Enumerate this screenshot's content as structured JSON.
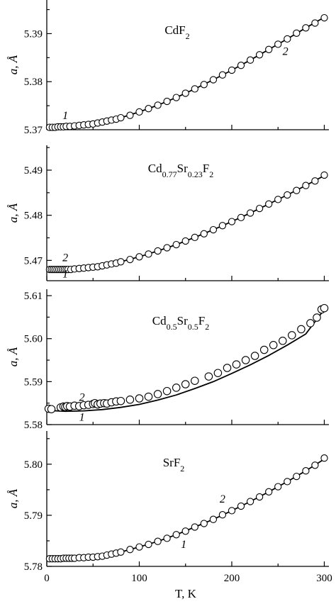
{
  "chart_data": [
    {
      "type": "line",
      "title": "CdF₂",
      "title_parts": [
        "CdF",
        "2",
        ""
      ],
      "ylabel": "a, Å",
      "xlim": [
        0,
        305
      ],
      "ylim": [
        5.37,
        5.397
      ],
      "y_ticks": [
        5.37,
        5.38,
        5.39
      ],
      "y_tick_labels": [
        "5.37",
        "5.38",
        "5.39"
      ],
      "series": [
        {
          "points": [
            [
              3,
              5.3705
            ],
            [
              6,
              5.3705
            ],
            [
              9,
              5.3705
            ],
            [
              12,
              5.3706
            ],
            [
              15,
              5.3706
            ],
            [
              18,
              5.3706
            ],
            [
              21,
              5.3707
            ],
            [
              25,
              5.3707
            ],
            [
              30,
              5.3708
            ],
            [
              35,
              5.3709
            ],
            [
              40,
              5.371
            ],
            [
              45,
              5.3711
            ],
            [
              50,
              5.3712
            ],
            [
              55,
              5.3714
            ],
            [
              60,
              5.3716
            ],
            [
              65,
              5.3718
            ],
            [
              70,
              5.372
            ],
            [
              75,
              5.3722
            ],
            [
              80,
              5.3725
            ],
            [
              90,
              5.373
            ],
            [
              100,
              5.3737
            ],
            [
              110,
              5.3744
            ],
            [
              120,
              5.3751
            ],
            [
              130,
              5.3759
            ],
            [
              140,
              5.3767
            ],
            [
              150,
              5.3776
            ],
            [
              160,
              5.3785
            ],
            [
              170,
              5.3794
            ],
            [
              180,
              5.3804
            ],
            [
              190,
              5.3814
            ],
            [
              200,
              5.3824
            ],
            [
              210,
              5.3834
            ],
            [
              220,
              5.3845
            ],
            [
              230,
              5.3856
            ],
            [
              240,
              5.3867
            ],
            [
              250,
              5.3878
            ],
            [
              260,
              5.3889
            ],
            [
              270,
              5.3901
            ],
            [
              280,
              5.3912
            ],
            [
              290,
              5.3922
            ],
            [
              300,
              5.3933
            ]
          ]
        },
        {
          "points": [
            [
              0,
              5.3705
            ],
            [
              20,
              5.3706
            ],
            [
              40,
              5.371
            ],
            [
              60,
              5.3716
            ],
            [
              80,
              5.3725
            ],
            [
              100,
              5.3737
            ],
            [
              120,
              5.3751
            ],
            [
              140,
              5.3767
            ],
            [
              160,
              5.3785
            ],
            [
              180,
              5.3804
            ],
            [
              200,
              5.3824
            ],
            [
              220,
              5.3845
            ],
            [
              240,
              5.3867
            ],
            [
              260,
              5.3889
            ],
            [
              280,
              5.3912
            ],
            [
              300,
              5.3934
            ]
          ]
        }
      ],
      "curve_labels": [
        {
          "text": "1",
          "x": 20,
          "y": 5.3722
        },
        {
          "text": "2",
          "x": 258,
          "y": 5.3856
        }
      ]
    },
    {
      "type": "line",
      "title": "Cd₀.₇₇Sr₀.₂₃F₂",
      "title_parts": [
        "Cd",
        "0.77",
        "Sr",
        "0.23",
        "F",
        "2"
      ],
      "ylabel": "a, Å",
      "xlim": [
        0,
        305
      ],
      "ylim": [
        5.4655,
        5.4955
      ],
      "y_ticks": [
        5.47,
        5.48,
        5.49
      ],
      "y_tick_labels": [
        "5.47",
        "5.48",
        "5.49"
      ],
      "series": [
        {
          "points": [
            [
              3,
              5.468
            ],
            [
              5,
              5.468
            ],
            [
              7,
              5.468
            ],
            [
              9,
              5.468
            ],
            [
              11,
              5.468
            ],
            [
              13,
              5.468
            ],
            [
              15,
              5.468
            ],
            [
              17,
              5.468
            ],
            [
              19,
              5.468
            ],
            [
              21,
              5.468
            ],
            [
              23,
              5.468
            ],
            [
              26,
              5.468
            ],
            [
              30,
              5.4681
            ],
            [
              35,
              5.4682
            ],
            [
              40,
              5.4683
            ],
            [
              45,
              5.4684
            ],
            [
              50,
              5.4685
            ],
            [
              55,
              5.4686
            ],
            [
              60,
              5.4688
            ],
            [
              65,
              5.469
            ],
            [
              70,
              5.4692
            ],
            [
              75,
              5.4694
            ],
            [
              80,
              5.4697
            ],
            [
              90,
              5.4702
            ],
            [
              100,
              5.4708
            ],
            [
              110,
              5.4714
            ],
            [
              120,
              5.4721
            ],
            [
              130,
              5.4728
            ],
            [
              140,
              5.4735
            ],
            [
              150,
              5.4743
            ],
            [
              160,
              5.4751
            ],
            [
              170,
              5.4759
            ],
            [
              180,
              5.4768
            ],
            [
              190,
              5.4777
            ],
            [
              200,
              5.4786
            ],
            [
              210,
              5.4795
            ],
            [
              220,
              5.4805
            ],
            [
              230,
              5.4815
            ],
            [
              240,
              5.4825
            ],
            [
              250,
              5.4835
            ],
            [
              260,
              5.4845
            ],
            [
              270,
              5.4855
            ],
            [
              280,
              5.4866
            ],
            [
              290,
              5.4876
            ],
            [
              300,
              5.4889
            ]
          ]
        },
        {
          "points": [
            [
              0,
              5.4683
            ],
            [
              20,
              5.4684
            ],
            [
              40,
              5.4686
            ],
            [
              60,
              5.469
            ],
            [
              80,
              5.4697
            ],
            [
              100,
              5.4708
            ],
            [
              120,
              5.4721
            ],
            [
              140,
              5.4735
            ],
            [
              160,
              5.4751
            ],
            [
              180,
              5.4768
            ],
            [
              200,
              5.4786
            ],
            [
              220,
              5.4805
            ],
            [
              240,
              5.4825
            ],
            [
              260,
              5.4845
            ],
            [
              280,
              5.4866
            ],
            [
              300,
              5.4888
            ]
          ]
        }
      ],
      "curve_labels": [
        {
          "text": "2",
          "x": 20,
          "y": 5.4698
        },
        {
          "text": "1",
          "x": 20,
          "y": 5.4662
        }
      ]
    },
    {
      "type": "line",
      "title": "Cd₀.₅Sr₀.₅F₂",
      "title_parts": [
        "Cd",
        "0.5",
        "Sr",
        "0.5",
        "F",
        "2"
      ],
      "ylabel": "a, Å",
      "xlim": [
        0,
        305
      ],
      "ylim": [
        5.58,
        5.6115
      ],
      "y_ticks": [
        5.58,
        5.59,
        5.6,
        5.61
      ],
      "y_tick_labels": [
        "5.58",
        "5.59",
        "5.60",
        "5.61"
      ],
      "series": [
        {
          "points": [
            [
              2,
              5.5837
            ],
            [
              5,
              5.5836
            ],
            [
              15,
              5.584
            ],
            [
              18,
              5.5842
            ],
            [
              20,
              5.5841
            ],
            [
              22,
              5.5843
            ],
            [
              25,
              5.5842
            ],
            [
              30,
              5.5844
            ],
            [
              35,
              5.5843
            ],
            [
              40,
              5.5845
            ],
            [
              45,
              5.5846
            ],
            [
              50,
              5.5848
            ],
            [
              52,
              5.585
            ],
            [
              55,
              5.5847
            ],
            [
              58,
              5.5849
            ],
            [
              62,
              5.585
            ],
            [
              65,
              5.5849
            ],
            [
              70,
              5.5852
            ],
            [
              75,
              5.5854
            ],
            [
              80,
              5.5855
            ],
            [
              90,
              5.5858
            ],
            [
              100,
              5.5861
            ],
            [
              110,
              5.5865
            ],
            [
              120,
              5.5871
            ],
            [
              130,
              5.5878
            ],
            [
              140,
              5.5886
            ],
            [
              150,
              5.5894
            ],
            [
              160,
              5.5902
            ],
            [
              175,
              5.5912
            ],
            [
              185,
              5.592
            ],
            [
              195,
              5.5932
            ],
            [
              205,
              5.594
            ],
            [
              215,
              5.595
            ],
            [
              225,
              5.596
            ],
            [
              235,
              5.5974
            ],
            [
              245,
              5.5985
            ],
            [
              255,
              5.5995
            ],
            [
              265,
              5.6008
            ],
            [
              275,
              5.6022
            ],
            [
              285,
              5.6036
            ],
            [
              292,
              5.6049
            ],
            [
              297,
              5.6068
            ],
            [
              300,
              5.6071
            ]
          ]
        },
        {
          "points": [
            [
              0,
              5.5833
            ],
            [
              20,
              5.5831
            ],
            [
              40,
              5.5832
            ],
            [
              60,
              5.5835
            ],
            [
              80,
              5.584
            ],
            [
              100,
              5.5847
            ],
            [
              120,
              5.5857
            ],
            [
              140,
              5.5869
            ],
            [
              160,
              5.5884
            ],
            [
              180,
              5.59
            ],
            [
              200,
              5.5919
            ],
            [
              220,
              5.5939
            ],
            [
              240,
              5.5961
            ],
            [
              260,
              5.5985
            ],
            [
              280,
              5.6011
            ],
            [
              300,
              5.6068
            ]
          ]
        }
      ],
      "curve_labels": [
        {
          "text": "2",
          "x": 38,
          "y": 5.5855
        },
        {
          "text": "1",
          "x": 38,
          "y": 5.5809
        }
      ]
    },
    {
      "type": "line",
      "title": "SrF₂",
      "title_parts": [
        "SrF",
        "2",
        ""
      ],
      "ylabel": "a, Å",
      "xlim": [
        0,
        305
      ],
      "ylim": [
        5.78,
        5.8065
      ],
      "y_ticks": [
        5.78,
        5.79,
        5.8
      ],
      "y_tick_labels": [
        "5.78",
        "5.79",
        "5.80"
      ],
      "xlabel": "T, K",
      "x_ticks": [
        0,
        100,
        200,
        300
      ],
      "x_tick_labels": [
        "0",
        "100",
        "200",
        "300"
      ],
      "series": [
        {
          "points": [
            [
              3,
              5.7815
            ],
            [
              6,
              5.7815
            ],
            [
              9,
              5.7815
            ],
            [
              12,
              5.7815
            ],
            [
              15,
              5.7815
            ],
            [
              18,
              5.7816
            ],
            [
              21,
              5.7816
            ],
            [
              24,
              5.7816
            ],
            [
              27,
              5.7816
            ],
            [
              30,
              5.7816
            ],
            [
              35,
              5.7817
            ],
            [
              40,
              5.7817
            ],
            [
              45,
              5.7818
            ],
            [
              50,
              5.7818
            ],
            [
              55,
              5.7819
            ],
            [
              60,
              5.782
            ],
            [
              65,
              5.7822
            ],
            [
              70,
              5.7824
            ],
            [
              75,
              5.7826
            ],
            [
              80,
              5.7828
            ],
            [
              90,
              5.7833
            ],
            [
              100,
              5.7838
            ],
            [
              110,
              5.7843
            ],
            [
              120,
              5.7849
            ],
            [
              130,
              5.7855
            ],
            [
              140,
              5.7862
            ],
            [
              150,
              5.7869
            ],
            [
              160,
              5.7877
            ],
            [
              170,
              5.7884
            ],
            [
              180,
              5.7892
            ],
            [
              190,
              5.7901
            ],
            [
              200,
              5.7909
            ],
            [
              210,
              5.7918
            ],
            [
              220,
              5.7927
            ],
            [
              230,
              5.7936
            ],
            [
              240,
              5.7946
            ],
            [
              250,
              5.7956
            ],
            [
              260,
              5.7966
            ],
            [
              270,
              5.7976
            ],
            [
              280,
              5.7987
            ],
            [
              290,
              5.7998
            ],
            [
              300,
              5.8012
            ]
          ]
        },
        {
          "points": [
            [
              0,
              5.7815
            ],
            [
              20,
              5.7816
            ],
            [
              40,
              5.7817
            ],
            [
              60,
              5.782
            ],
            [
              80,
              5.7828
            ],
            [
              100,
              5.7838
            ],
            [
              120,
              5.7849
            ],
            [
              140,
              5.7862
            ],
            [
              160,
              5.7877
            ],
            [
              180,
              5.7892
            ],
            [
              200,
              5.7909
            ],
            [
              220,
              5.7927
            ],
            [
              240,
              5.7946
            ],
            [
              260,
              5.7966
            ],
            [
              280,
              5.7987
            ],
            [
              300,
              5.801
            ]
          ]
        }
      ],
      "curve_labels": [
        {
          "text": "2",
          "x": 190,
          "y": 5.7925
        },
        {
          "text": "1",
          "x": 148,
          "y": 5.7836
        }
      ]
    }
  ]
}
